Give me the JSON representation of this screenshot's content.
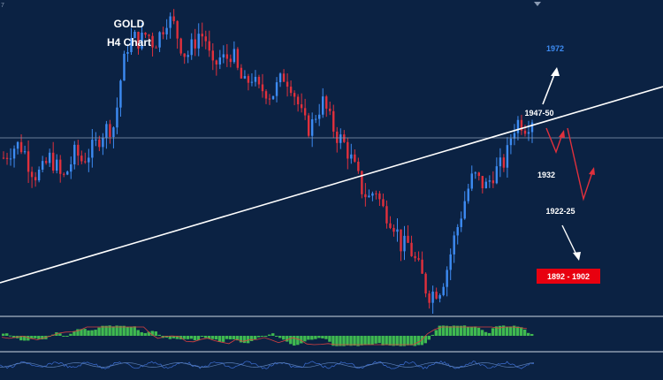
{
  "chart_data": {
    "type": "candlestick",
    "title": "GOLD",
    "subtitle": "H4 Chart",
    "colors": {
      "background": "#0b2243",
      "bull": "#3d8bf2",
      "bear": "#e0303c",
      "trendline": "#ffffff",
      "macd_hist": "#3fb950",
      "target_up": "#3d8bf2",
      "target_box": "#e8000f"
    },
    "price_path": [
      1924,
      1929,
      1933,
      1931,
      1918,
      1912,
      1915,
      1924,
      1919,
      1908,
      1917,
      1928,
      1922,
      1927,
      1932,
      1941,
      1945,
      1946,
      1980,
      2002,
      2007,
      2005,
      2011,
      2003,
      2010,
      2021,
      2017,
      2004,
      1994,
      2002,
      2011,
      2006,
      1984,
      1993,
      1992,
      1998,
      1982,
      1974,
      1981,
      1970,
      1972,
      1967,
      1974,
      1981,
      1976,
      1963,
      1948,
      1944,
      1956,
      1963,
      1950,
      1940,
      1935,
      1926,
      1914,
      1901,
      1896,
      1903,
      1889,
      1884,
      1877,
      1862,
      1864,
      1853,
      1843,
      1829,
      1831,
      1834,
      1848,
      1867,
      1883,
      1900,
      1912,
      1907,
      1904,
      1913,
      1917,
      1923,
      1944,
      1950,
      1946,
      1952
    ],
    "levels": [
      {
        "label": "1972",
        "role": "target-high"
      },
      {
        "label": "1947-50",
        "role": "resistance"
      },
      {
        "label": "1932",
        "role": "support"
      },
      {
        "label": "1922-25",
        "role": "support"
      },
      {
        "label": "1892 - 1902",
        "role": "target-low"
      }
    ],
    "indicator_panels": [
      "macd",
      "oscillator"
    ]
  }
}
